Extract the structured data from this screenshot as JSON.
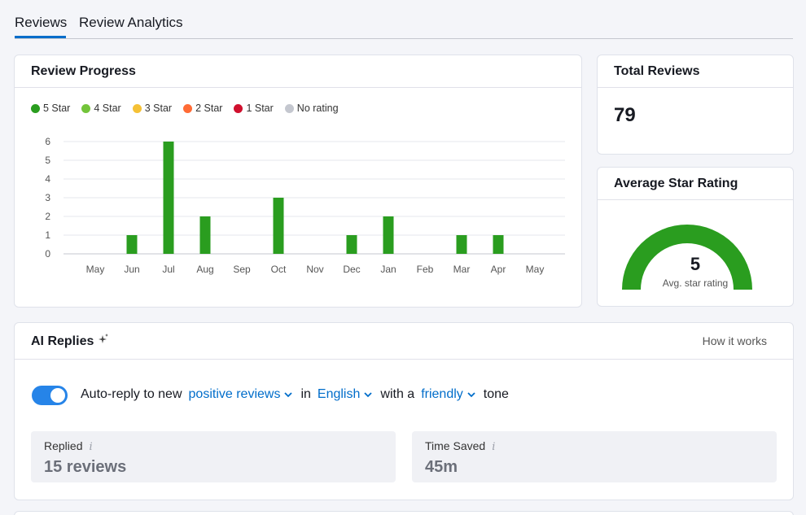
{
  "tabs": [
    {
      "label": "Reviews",
      "active": true
    },
    {
      "label": "Review Analytics",
      "active": false
    }
  ],
  "review_progress": {
    "title": "Review Progress",
    "legend": [
      {
        "label": "5 Star",
        "color": "#2a9d1f"
      },
      {
        "label": "4 Star",
        "color": "#73c43a"
      },
      {
        "label": "3 Star",
        "color": "#f5c136"
      },
      {
        "label": "2 Star",
        "color": "#ff6b35"
      },
      {
        "label": "1 Star",
        "color": "#d0102e"
      },
      {
        "label": "No rating",
        "color": "#c4c7cf"
      }
    ]
  },
  "chart_data": {
    "type": "bar",
    "categories": [
      "May",
      "Jun",
      "Jul",
      "Aug",
      "Sep",
      "Oct",
      "Nov",
      "Dec",
      "Jan",
      "Feb",
      "Mar",
      "Apr",
      "May"
    ],
    "series": [
      {
        "name": "5 Star",
        "color": "#2a9d1f",
        "values": [
          0,
          1,
          6,
          2,
          0,
          3,
          0,
          1,
          2,
          0,
          1,
          1,
          0
        ]
      }
    ],
    "yticks": [
      0,
      1,
      2,
      3,
      4,
      5,
      6
    ],
    "ylim": [
      0,
      6
    ],
    "grid": true,
    "legend_position": "top-left"
  },
  "total_reviews": {
    "title": "Total Reviews",
    "value": "79"
  },
  "average_rating": {
    "title": "Average Star Rating",
    "value": "5",
    "caption": "Avg. star rating",
    "color": "#2a9d1f"
  },
  "ai_replies": {
    "title": "AI Replies",
    "how_it_works": "How it works",
    "toggle_on": true,
    "sentence": {
      "part1": "Auto-reply to new",
      "reviews_option": "positive reviews",
      "part2": "in",
      "language_option": "English",
      "part3": "with a",
      "tone_option": "friendly",
      "part4": "tone"
    },
    "stats": [
      {
        "label": "Replied",
        "value": "15 reviews"
      },
      {
        "label": "Time Saved",
        "value": "45m"
      }
    ]
  }
}
